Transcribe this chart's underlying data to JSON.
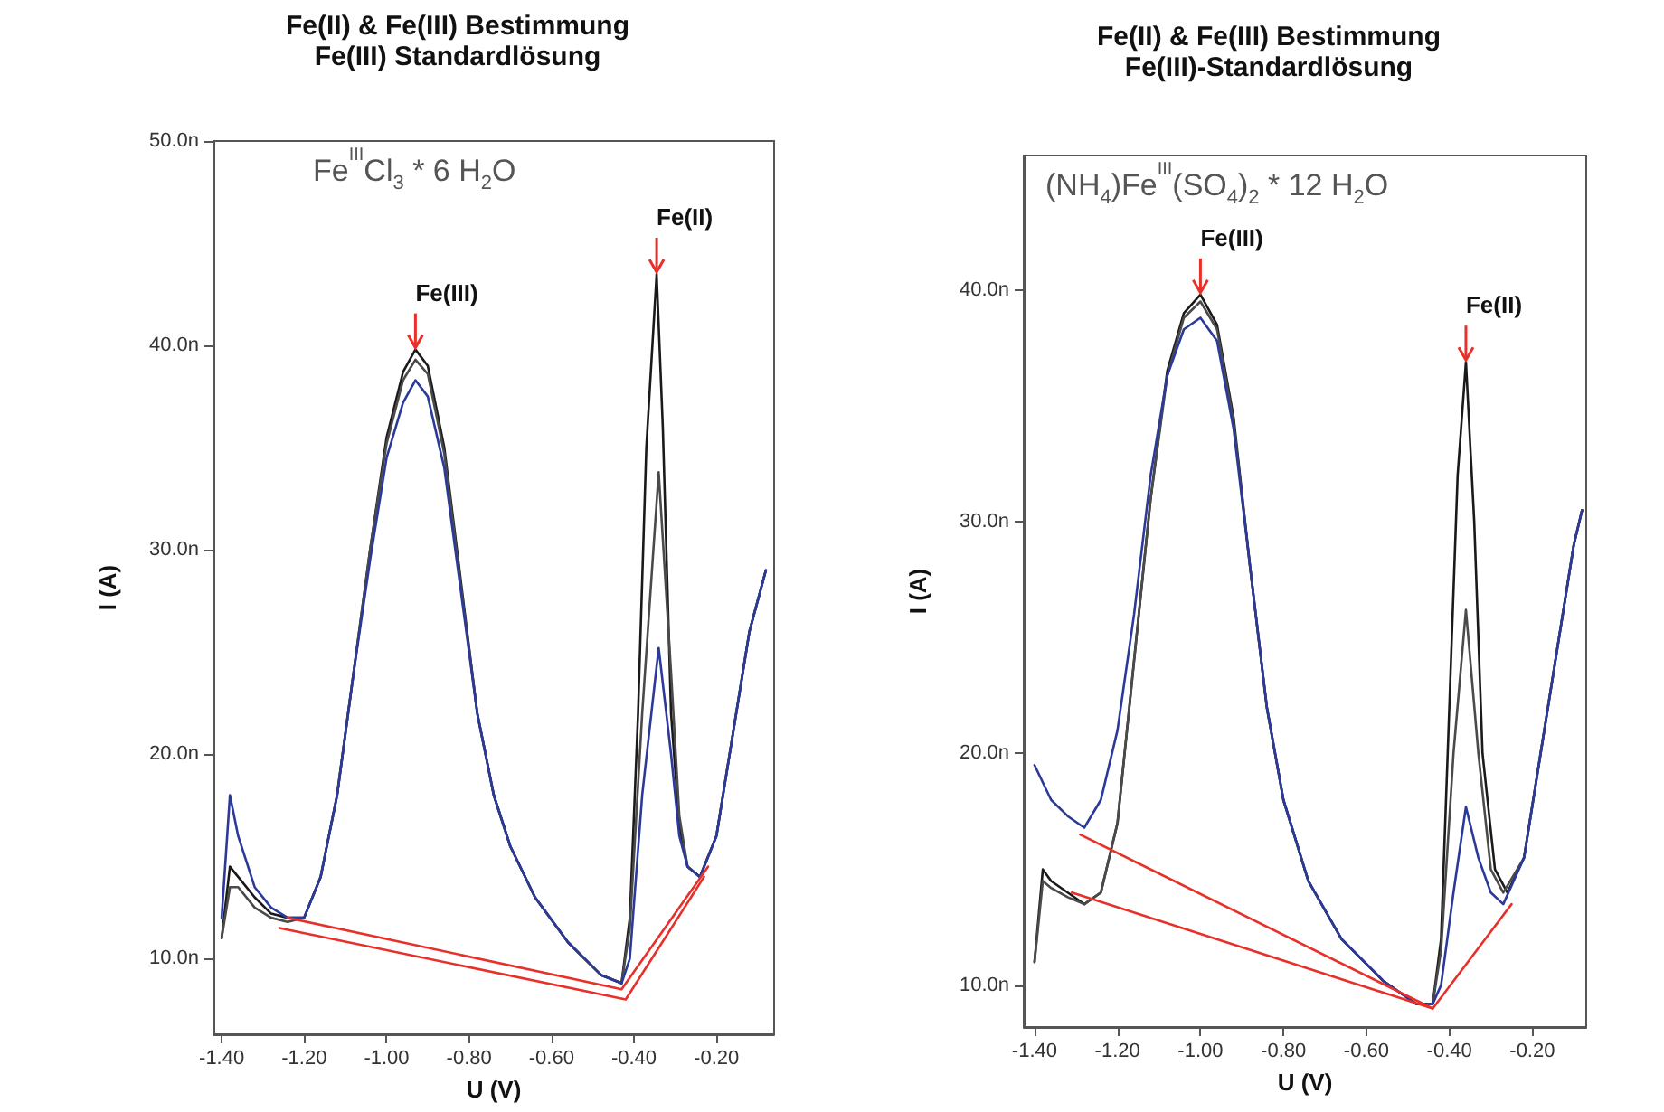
{
  "chart_data": [
    {
      "type": "line",
      "title": "Fe(II) & Fe(III) Bestimmung",
      "subtitle": "Fe(III) Standardlösung",
      "xlabel": "U (V)",
      "ylabel": "I (A)",
      "xlim": [
        -1.42,
        -0.06
      ],
      "xticks": [
        {
          "value": -1.4,
          "label": "-1.40"
        },
        {
          "value": -1.2,
          "label": "-1.20"
        },
        {
          "value": -1.0,
          "label": "-1.00"
        },
        {
          "value": -0.8,
          "label": "-0.80"
        },
        {
          "value": -0.6,
          "label": "-0.60"
        },
        {
          "value": -0.4,
          "label": "-0.40"
        },
        {
          "value": -0.2,
          "label": "-0.20"
        }
      ],
      "ylim": [
        6.3,
        50
      ],
      "yticks": [
        {
          "value": 10,
          "label": "10.0n"
        },
        {
          "value": 20,
          "label": "20.0n"
        },
        {
          "value": 30,
          "label": "30.0n"
        },
        {
          "value": 40,
          "label": "40.0n"
        },
        {
          "value": 50,
          "label": "50.0n"
        }
      ],
      "grid": false,
      "marker": "none",
      "line_style": "solid",
      "annotations": [
        "Fe$^{III}$Cl$_{3}$ * 6 H$_{2}$O",
        {
          "text": "Fe(III)",
          "x": -0.93,
          "y": 39.8
        },
        {
          "text": "Fe(II)",
          "x": -0.345,
          "y": 43.5
        }
      ],
      "series": [
        {
          "color": "#1a1a1a",
          "x": [
            -1.4,
            -1.38,
            -1.36,
            -1.32,
            -1.28,
            -1.24,
            -1.2,
            -1.16,
            -1.12,
            -1.08,
            -1.04,
            -1.0,
            -0.96,
            -0.93,
            -0.9,
            -0.86,
            -0.82,
            -0.78,
            -0.74,
            -0.7,
            -0.64,
            -0.56,
            -0.48,
            -0.43,
            -0.41,
            -0.39,
            -0.37,
            -0.345,
            -0.33,
            -0.31,
            -0.29,
            -0.27,
            -0.24,
            -0.2,
            -0.16,
            -0.12,
            -0.08
          ],
          "values": [
            11,
            14.5,
            14,
            13,
            12.2,
            12,
            12,
            14,
            18,
            24,
            30,
            35.5,
            38.7,
            39.8,
            39,
            35,
            28.5,
            22,
            18,
            15.5,
            13,
            10.8,
            9.2,
            8.8,
            12,
            22,
            35,
            43.5,
            36,
            22,
            16.5,
            14.5,
            14,
            16,
            21,
            26,
            29
          ]
        },
        {
          "color": "#4a4a4a",
          "x": [
            -1.4,
            -1.38,
            -1.36,
            -1.32,
            -1.28,
            -1.24,
            -1.2,
            -1.16,
            -1.12,
            -1.08,
            -1.04,
            -1.0,
            -0.96,
            -0.93,
            -0.9,
            -0.86,
            -0.82,
            -0.78,
            -0.74,
            -0.7,
            -0.64,
            -0.56,
            -0.48,
            -0.43,
            -0.41,
            -0.38,
            -0.34,
            -0.31,
            -0.29,
            -0.27,
            -0.24,
            -0.2,
            -0.16,
            -0.12,
            -0.08
          ],
          "values": [
            11,
            13.5,
            13.5,
            12.5,
            12,
            11.8,
            12,
            14,
            18,
            24,
            30,
            35.2,
            38.3,
            39.3,
            38.6,
            34.7,
            28.3,
            22,
            18,
            15.5,
            13,
            10.8,
            9.2,
            8.8,
            11.5,
            22,
            33.8,
            24,
            17,
            14.5,
            14,
            16,
            21,
            26,
            29
          ]
        },
        {
          "color": "#2b3a9a",
          "x": [
            -1.4,
            -1.38,
            -1.36,
            -1.32,
            -1.28,
            -1.24,
            -1.2,
            -1.16,
            -1.12,
            -1.08,
            -1.04,
            -1.0,
            -0.96,
            -0.93,
            -0.9,
            -0.86,
            -0.82,
            -0.78,
            -0.74,
            -0.7,
            -0.64,
            -0.56,
            -0.48,
            -0.43,
            -0.41,
            -0.38,
            -0.34,
            -0.31,
            -0.29,
            -0.27,
            -0.24,
            -0.2,
            -0.16,
            -0.12,
            -0.08
          ],
          "values": [
            12,
            18,
            16,
            13.5,
            12.5,
            12,
            12,
            14,
            18,
            24,
            29.5,
            34.5,
            37.2,
            38.3,
            37.5,
            34,
            28,
            22,
            18,
            15.5,
            13,
            10.8,
            9.2,
            8.8,
            10,
            18,
            25.2,
            20,
            16,
            14.5,
            14,
            16,
            21,
            26,
            29
          ]
        },
        {
          "color": "#e8302a",
          "x": [
            -1.24,
            -0.43,
            -0.22
          ],
          "values": [
            12,
            8.5,
            14.5
          ]
        },
        {
          "color": "#e8302a",
          "x": [
            -1.26,
            -0.42,
            -0.23
          ],
          "values": [
            11.5,
            8,
            14
          ]
        }
      ]
    },
    {
      "type": "line",
      "title": "Fe(II) & Fe(III) Bestimmung",
      "subtitle": "Fe(III)-Standardlösung",
      "xlabel": "U (V)",
      "ylabel": "I (A)",
      "xlim": [
        -1.426,
        -0.07
      ],
      "xticks": [
        {
          "value": -1.4,
          "label": "-1.40"
        },
        {
          "value": -1.2,
          "label": "-1.20"
        },
        {
          "value": -1.0,
          "label": "-1.00"
        },
        {
          "value": -0.8,
          "label": "-0.80"
        },
        {
          "value": -0.6,
          "label": "-0.60"
        },
        {
          "value": -0.4,
          "label": "-0.40"
        },
        {
          "value": -0.2,
          "label": "-0.20"
        }
      ],
      "ylim": [
        8.2,
        45.8
      ],
      "yticks": [
        {
          "value": 10,
          "label": "10.0n"
        },
        {
          "value": 20,
          "label": "20.0n"
        },
        {
          "value": 30,
          "label": "30.0n"
        },
        {
          "value": 40,
          "label": "40.0n"
        }
      ],
      "grid": false,
      "marker": "none",
      "line_style": "solid",
      "annotations": [
        "(NH$_{4}$)Fe$^{III}$(SO$_{4}$)$_{2}$ * 12 H$_{2}$O",
        {
          "text": "Fe(III)",
          "x": -1.0,
          "y": 39.8
        },
        {
          "text": "Fe(II)",
          "x": -0.36,
          "y": 36.9
        }
      ],
      "series": [
        {
          "color": "#1a1a1a",
          "x": [
            -1.4,
            -1.38,
            -1.36,
            -1.32,
            -1.28,
            -1.24,
            -1.2,
            -1.16,
            -1.12,
            -1.08,
            -1.04,
            -1.0,
            -0.96,
            -0.92,
            -0.88,
            -0.84,
            -0.8,
            -0.74,
            -0.66,
            -0.56,
            -0.48,
            -0.44,
            -0.42,
            -0.4,
            -0.38,
            -0.36,
            -0.34,
            -0.32,
            -0.29,
            -0.26,
            -0.22,
            -0.18,
            -0.14,
            -0.1,
            -0.08
          ],
          "values": [
            11,
            15,
            14.5,
            14,
            13.5,
            14,
            17,
            24,
            31,
            36.5,
            39,
            39.8,
            38.5,
            34.5,
            28,
            22,
            18,
            14.5,
            12,
            10.2,
            9.2,
            9.2,
            12,
            22,
            32,
            36.9,
            30,
            20,
            15,
            14,
            15.5,
            20,
            24.5,
            29,
            30.5
          ]
        },
        {
          "color": "#4a4a4a",
          "x": [
            -1.4,
            -1.38,
            -1.36,
            -1.32,
            -1.28,
            -1.24,
            -1.2,
            -1.16,
            -1.12,
            -1.08,
            -1.04,
            -1.0,
            -0.96,
            -0.92,
            -0.88,
            -0.84,
            -0.8,
            -0.74,
            -0.66,
            -0.56,
            -0.48,
            -0.44,
            -0.42,
            -0.39,
            -0.36,
            -0.33,
            -0.3,
            -0.27,
            -0.22,
            -0.18,
            -0.14,
            -0.1,
            -0.08
          ],
          "values": [
            11,
            14.5,
            14.2,
            13.8,
            13.5,
            14,
            17,
            24,
            31,
            36.3,
            38.8,
            39.5,
            38.3,
            34.3,
            28,
            22,
            18,
            14.5,
            12,
            10.2,
            9.2,
            9.2,
            11.5,
            20,
            26.2,
            20,
            15,
            14,
            15.5,
            20,
            24.5,
            29,
            30.5
          ]
        },
        {
          "color": "#2b3a9a",
          "x": [
            -1.4,
            -1.36,
            -1.32,
            -1.28,
            -1.24,
            -1.2,
            -1.16,
            -1.12,
            -1.08,
            -1.04,
            -1.0,
            -0.96,
            -0.92,
            -0.88,
            -0.84,
            -0.8,
            -0.74,
            -0.66,
            -0.56,
            -0.48,
            -0.44,
            -0.42,
            -0.39,
            -0.36,
            -0.33,
            -0.3,
            -0.27,
            -0.22,
            -0.18,
            -0.14,
            -0.1,
            -0.08
          ],
          "values": [
            19.5,
            18,
            17.3,
            16.8,
            18,
            21,
            26,
            32,
            36.3,
            38.3,
            38.8,
            37.8,
            34,
            28,
            22,
            18,
            14.5,
            12,
            10.2,
            9.2,
            9.2,
            10,
            14,
            17.7,
            15.5,
            14,
            13.5,
            15.5,
            20,
            24.5,
            29,
            30.5
          ]
        },
        {
          "color": "#e8302a",
          "x": [
            -1.31,
            -0.44,
            -0.25
          ],
          "values": [
            14,
            9,
            13.5
          ]
        },
        {
          "color": "#e8302a",
          "x": [
            -1.29,
            -0.44
          ],
          "values": [
            16.5,
            9
          ]
        }
      ]
    }
  ]
}
